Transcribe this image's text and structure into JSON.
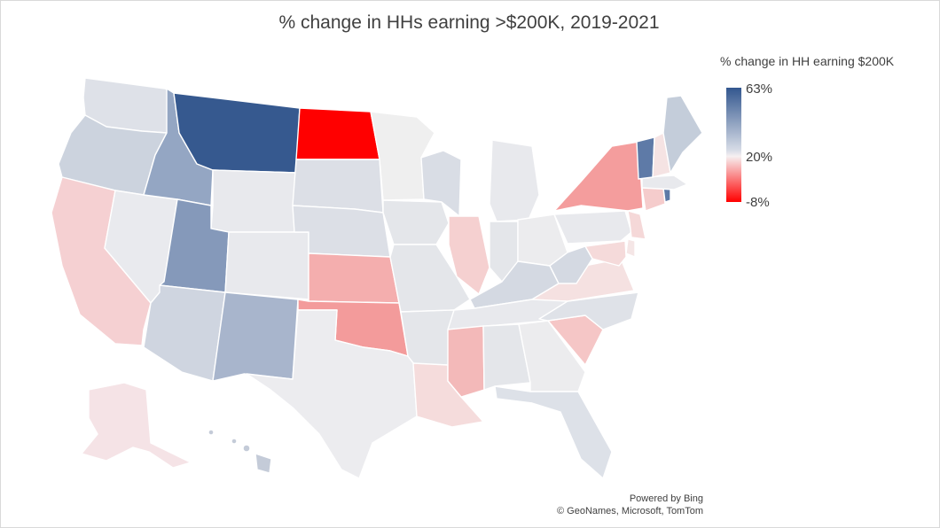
{
  "title": "% change in HHs earning >$200K, 2019-2021",
  "legend": {
    "title": "% change in HH earning $200K",
    "max_label": "63%",
    "mid_label": "20%",
    "min_label": "-8%",
    "colors": {
      "max": "#33578f",
      "mid": "#f6f0f1",
      "min": "#ff0000"
    }
  },
  "credit": {
    "powered_by": "Powered by Bing",
    "copyright": "© GeoNames, Microsoft, TomTom"
  },
  "state_fills": {
    "WA": "#dee1e8",
    "OR": "#ccd3de",
    "CA": "#f5d0d2",
    "NV": "#e9eaee",
    "ID": "#94a6c3",
    "MT": "#36598f",
    "WY": "#e8e9ed",
    "UT": "#8599ba",
    "AZ": "#cfd5e0",
    "CO": "#e8e9ed",
    "NM": "#a8b5cc",
    "ND": "#ff0000",
    "SD": "#dcdfe6",
    "NE": "#dcdfe6",
    "KS": "#f4aeae",
    "OK": "#f39b9b",
    "TX": "#ececef",
    "MN": "#efefef",
    "IA": "#e4e6ea",
    "MO": "#e4e6ea",
    "AR": "#e4e6ea",
    "LA": "#f5dcdc",
    "WI": "#d9dde5",
    "IL": "#f5d0d0",
    "MI": "#e8e9ed",
    "IN": "#e4e6ea",
    "OH": "#ececee",
    "KY": "#d4d9e2",
    "TN": "#e8e9ed",
    "MS": "#f3b9b9",
    "AL": "#e4e6ea",
    "GA": "#ececee",
    "FL": "#dde1e8",
    "SC": "#f5c6c6",
    "NC": "#dfe2e8",
    "VA": "#f5e1e1",
    "WV": "#d4d9e2",
    "PA": "#e8e9ed",
    "NY": "#f49d9d",
    "VT": "#5e7aa7",
    "NH": "#f5e3e3",
    "ME": "#c4cdda",
    "MA": "#e8e9ed",
    "RI": "#5e7aa7",
    "CT": "#f5cccc",
    "NJ": "#f5d8d8",
    "DE": "#f5e6e6",
    "MD": "#f5dada",
    "AK": "#f5e3e6",
    "HI": "#c4cbd8"
  }
}
